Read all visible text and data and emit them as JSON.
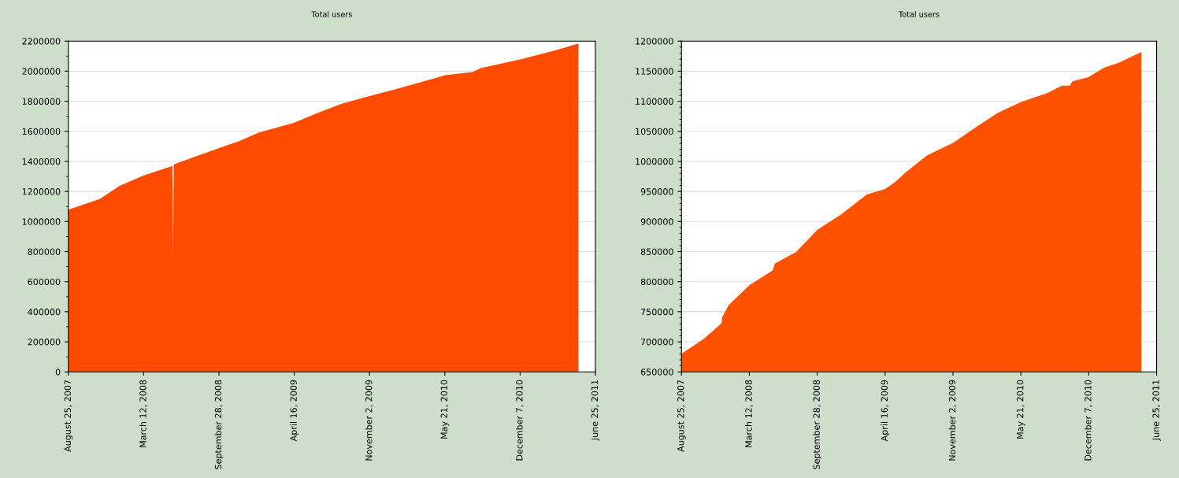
{
  "chart_data": [
    {
      "type": "area",
      "title": "Total users",
      "grid": "y",
      "legend": false,
      "xlim": [
        "2007-08-25",
        "2011-06-25"
      ],
      "xticks": [
        {
          "value": "2007-08-25",
          "label": "August 25, 2007"
        },
        {
          "value": "2008-03-12",
          "label": "March 12, 2008"
        },
        {
          "value": "2008-09-28",
          "label": "September 28, 2008"
        },
        {
          "value": "2009-04-16",
          "label": "April 16, 2009"
        },
        {
          "value": "2009-11-02",
          "label": "November 2, 2009"
        },
        {
          "value": "2010-05-21",
          "label": "May 21, 2010"
        },
        {
          "value": "2010-12-07",
          "label": "December 7, 2010"
        },
        {
          "value": "2011-06-25",
          "label": "June 25, 2011"
        }
      ],
      "ylim": [
        0,
        2200000
      ],
      "yticks": [
        0,
        200000,
        400000,
        600000,
        800000,
        1000000,
        1200000,
        1400000,
        1600000,
        1800000,
        2000000,
        2200000
      ],
      "series": [
        {
          "color": "#ff4a00",
          "x": [
            "2007-08-25",
            "2007-11-16",
            "2008-01-08",
            "2008-03-11",
            "2008-05-27",
            "2008-05-29",
            "2008-05-31",
            "2008-08-05",
            "2008-09-27",
            "2008-11-19",
            "2009-01-11",
            "2009-04-15",
            "2009-06-18",
            "2009-08-20",
            "2009-11-04",
            "2010-01-14",
            "2010-03-19",
            "2010-05-22",
            "2010-08-03",
            "2010-08-24",
            "2010-12-07",
            "2011-03-12",
            "2011-05-11"
          ],
          "values": [
            1079000,
            1150000,
            1237000,
            1306000,
            1370000,
            717000,
            1380000,
            1440000,
            1488000,
            1533000,
            1591000,
            1657000,
            1723000,
            1783000,
            1836000,
            1883000,
            1928000,
            1973000,
            1994000,
            2020000,
            2078000,
            2139000,
            2184000
          ]
        }
      ]
    },
    {
      "type": "area",
      "title": "Total users",
      "grid": "y",
      "legend": false,
      "xlim": [
        "2007-08-25",
        "2011-06-25"
      ],
      "xticks": [
        {
          "value": "2007-08-25",
          "label": "August 25, 2007"
        },
        {
          "value": "2008-03-12",
          "label": "March 12, 2008"
        },
        {
          "value": "2008-09-28",
          "label": "September 28, 2008"
        },
        {
          "value": "2009-04-16",
          "label": "April 16, 2009"
        },
        {
          "value": "2009-11-02",
          "label": "November 2, 2009"
        },
        {
          "value": "2010-05-21",
          "label": "May 21, 2010"
        },
        {
          "value": "2010-12-07",
          "label": "December 7, 2010"
        },
        {
          "value": "2011-06-25",
          "label": "June 25, 2011"
        }
      ],
      "ylim": [
        650000,
        1200000
      ],
      "yticks": [
        650000,
        700000,
        750000,
        800000,
        850000,
        900000,
        950000,
        1000000,
        1050000,
        1100000,
        1150000,
        1200000
      ],
      "series": [
        {
          "color": "#ff5200",
          "x": [
            "2007-08-25",
            "2007-10-30",
            "2007-12-21",
            "2007-12-23",
            "2008-01-11",
            "2008-03-12",
            "2008-05-20",
            "2008-05-26",
            "2008-07-27",
            "2008-09-28",
            "2008-12-10",
            "2009-02-21",
            "2009-04-16",
            "2009-05-16",
            "2009-06-16",
            "2009-08-18",
            "2009-11-03",
            "2010-01-11",
            "2010-03-15",
            "2010-05-23",
            "2010-08-08",
            "2010-09-19",
            "2010-10-12",
            "2010-10-20",
            "2010-12-06",
            "2011-01-22",
            "2011-03-05",
            "2011-05-11"
          ],
          "values": [
            680000,
            705000,
            731000,
            741000,
            761000,
            794000,
            819000,
            830000,
            849000,
            886000,
            913000,
            945000,
            954000,
            966000,
            982000,
            1010000,
            1031000,
            1058000,
            1081000,
            1099000,
            1114000,
            1126000,
            1126000,
            1133000,
            1140000,
            1156000,
            1164000,
            1182000
          ]
        }
      ]
    }
  ]
}
